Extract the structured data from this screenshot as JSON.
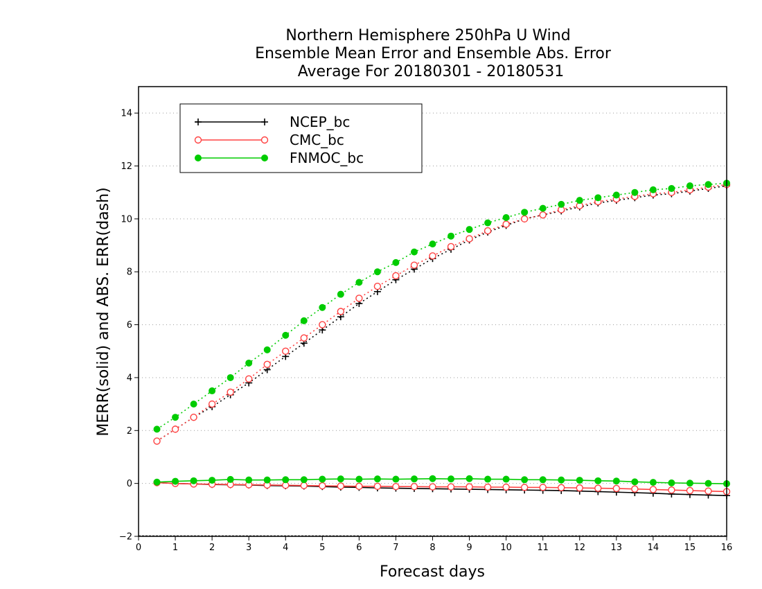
{
  "chart_data": {
    "type": "line",
    "title": [
      "Northern Hemisphere 250hPa U Wind",
      "Ensemble Mean Error and Ensemble Abs. Error",
      "Average For 20180301 - 20180531"
    ],
    "xlabel": "Forecast days",
    "ylabel": "MERR(solid) and ABS. ERR(dash)",
    "xlim": [
      0,
      16
    ],
    "ylim": [
      -2,
      15
    ],
    "xticks": [
      "0",
      "1",
      "2",
      "3",
      "4",
      "5",
      "6",
      "7",
      "8",
      "9",
      "10",
      "11",
      "12",
      "13",
      "14",
      "15",
      "16"
    ],
    "yticks": [
      "−2",
      "0",
      "2",
      "4",
      "6",
      "8",
      "10",
      "12",
      "14"
    ],
    "grid": "horizontal dotted",
    "legend_position": "top-left",
    "x": [
      0.5,
      1,
      1.5,
      2,
      2.5,
      3,
      3.5,
      4,
      4.5,
      5,
      5.5,
      6,
      6.5,
      7,
      7.5,
      8,
      8.5,
      9,
      9.5,
      10,
      10.5,
      11,
      11.5,
      12,
      12.5,
      13,
      13.5,
      14,
      14.5,
      15,
      15.5,
      16
    ],
    "series": [
      {
        "name": "NCEP_bc",
        "color": "#000000",
        "marker": "plus",
        "merr": [
          0.03,
          0.0,
          -0.02,
          -0.04,
          -0.05,
          -0.06,
          -0.08,
          -0.09,
          -0.1,
          -0.12,
          -0.14,
          -0.15,
          -0.17,
          -0.18,
          -0.19,
          -0.2,
          -0.21,
          -0.22,
          -0.23,
          -0.24,
          -0.25,
          -0.26,
          -0.27,
          -0.29,
          -0.31,
          -0.33,
          -0.35,
          -0.37,
          -0.4,
          -0.42,
          -0.44,
          -0.46
        ],
        "abs_err": [
          1.6,
          2.05,
          2.5,
          2.9,
          3.35,
          3.8,
          4.3,
          4.8,
          5.3,
          5.8,
          6.3,
          6.8,
          7.25,
          7.7,
          8.1,
          8.5,
          8.85,
          9.2,
          9.5,
          9.75,
          10.0,
          10.15,
          10.3,
          10.45,
          10.6,
          10.7,
          10.8,
          10.9,
          10.95,
          11.05,
          11.15,
          11.25
        ]
      },
      {
        "name": "CMC_bc",
        "color": "#ff4040",
        "marker": "open-circle",
        "merr": [
          0.03,
          0.0,
          -0.02,
          -0.03,
          -0.04,
          -0.05,
          -0.06,
          -0.07,
          -0.08,
          -0.09,
          -0.1,
          -0.11,
          -0.11,
          -0.12,
          -0.12,
          -0.13,
          -0.13,
          -0.13,
          -0.14,
          -0.14,
          -0.15,
          -0.15,
          -0.16,
          -0.17,
          -0.18,
          -0.19,
          -0.21,
          -0.23,
          -0.25,
          -0.27,
          -0.29,
          -0.31
        ],
        "abs_err": [
          1.6,
          2.05,
          2.5,
          3.0,
          3.45,
          3.95,
          4.5,
          5.0,
          5.5,
          6.0,
          6.5,
          7.0,
          7.45,
          7.85,
          8.25,
          8.6,
          8.95,
          9.25,
          9.55,
          9.8,
          10.0,
          10.15,
          10.35,
          10.5,
          10.65,
          10.75,
          10.85,
          10.95,
          11.0,
          11.1,
          11.2,
          11.3
        ]
      },
      {
        "name": "FNMOC_bc",
        "color": "#00cc00",
        "marker": "filled-circle",
        "merr": [
          0.05,
          0.08,
          0.1,
          0.12,
          0.15,
          0.13,
          0.13,
          0.14,
          0.14,
          0.16,
          0.17,
          0.16,
          0.17,
          0.16,
          0.17,
          0.18,
          0.17,
          0.18,
          0.16,
          0.16,
          0.14,
          0.14,
          0.13,
          0.12,
          0.1,
          0.09,
          0.06,
          0.04,
          0.02,
          0.01,
          0.0,
          -0.01
        ],
        "abs_err": [
          2.05,
          2.5,
          3.0,
          3.5,
          4.0,
          4.55,
          5.05,
          5.6,
          6.15,
          6.65,
          7.15,
          7.6,
          8.0,
          8.35,
          8.75,
          9.05,
          9.35,
          9.6,
          9.85,
          10.05,
          10.25,
          10.4,
          10.55,
          10.7,
          10.8,
          10.9,
          11.0,
          11.1,
          11.15,
          11.25,
          11.3,
          11.35
        ]
      }
    ]
  }
}
